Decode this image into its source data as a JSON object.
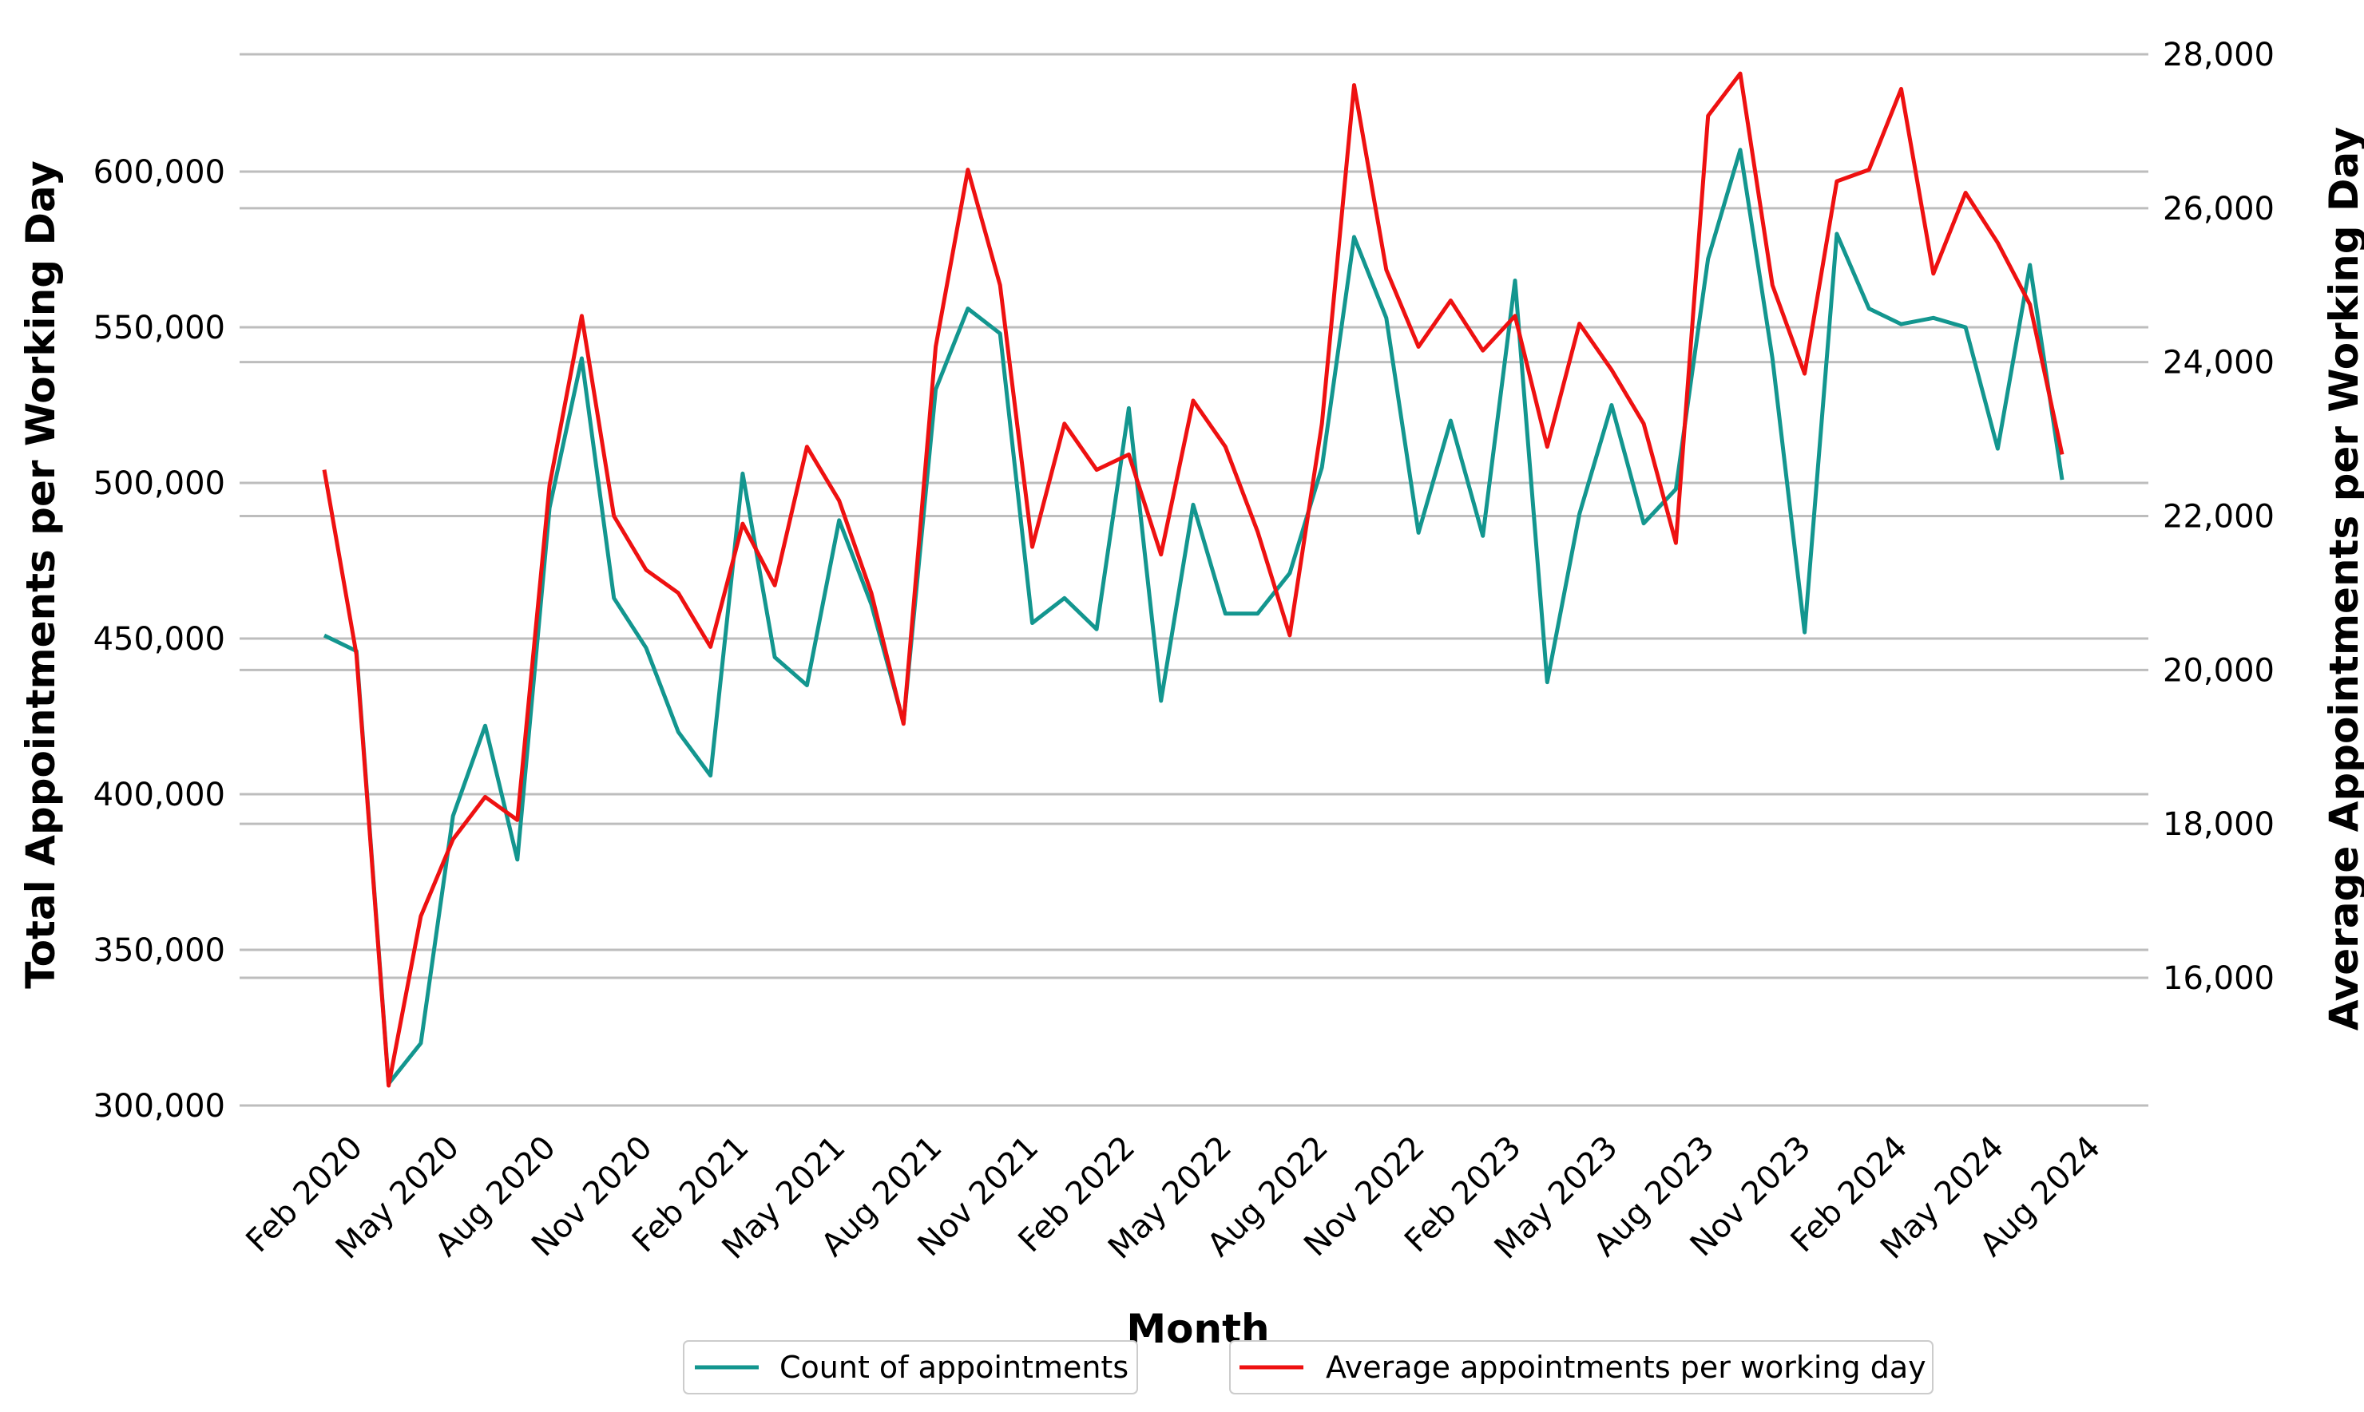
{
  "chart_data": {
    "type": "line",
    "xlabel": "Month",
    "ylabel_left": "Total Appointments per Working Day",
    "ylabel_right": "Average Appointments per Working Day",
    "ylim_left": [
      300000,
      620000
    ],
    "ylim_right": [
      14200,
      28000
    ],
    "yticks_left": [
      300000,
      350000,
      400000,
      450000,
      500000,
      550000,
      600000
    ],
    "yticks_left_labels": [
      "300,000",
      "350,000",
      "400,000",
      "450,000",
      "500,000",
      "550,000",
      "600,000"
    ],
    "yticks_right": [
      16000,
      18000,
      20000,
      22000,
      24000,
      26000,
      28000
    ],
    "yticks_right_labels": [
      "16,000",
      "18,000",
      "20,000",
      "22,000",
      "24,000",
      "26,000",
      "28,000"
    ],
    "xtick_labels": [
      "Feb 2020",
      "May 2020",
      "Aug 2020",
      "Nov 2020",
      "Feb 2021",
      "May 2021",
      "Aug 2021",
      "Nov 2021",
      "Feb 2022",
      "May 2022",
      "Aug 2022",
      "Nov 2022",
      "Feb 2023",
      "May 2023",
      "Aug 2023",
      "Nov 2023",
      "Feb 2024",
      "May 2024",
      "Aug 2024"
    ],
    "grid": true,
    "legend_position": "bottom-center",
    "x": [
      "2020-02",
      "2020-03",
      "2020-04",
      "2020-05",
      "2020-06",
      "2020-07",
      "2020-08",
      "2020-09",
      "2020-10",
      "2020-11",
      "2020-12",
      "2021-01",
      "2021-02",
      "2021-03",
      "2021-04",
      "2021-05",
      "2021-06",
      "2021-07",
      "2021-08",
      "2021-09",
      "2021-10",
      "2021-11",
      "2021-12",
      "2022-01",
      "2022-02",
      "2022-03",
      "2022-04",
      "2022-05",
      "2022-06",
      "2022-07",
      "2022-08",
      "2022-09",
      "2022-10",
      "2022-11",
      "2022-12",
      "2023-01",
      "2023-02",
      "2023-03",
      "2023-04",
      "2023-05",
      "2023-06",
      "2023-07",
      "2023-08",
      "2023-09",
      "2023-10",
      "2023-11",
      "2023-12",
      "2024-01",
      "2024-02",
      "2024-03",
      "2024-04",
      "2024-05",
      "2024-06",
      "2024-07",
      "2024-08"
    ],
    "series": [
      {
        "name": "Count of appointments",
        "axis": "left",
        "color": "#13968f",
        "values": [
          451000,
          446000,
          307000,
          320000,
          393000,
          422000,
          379000,
          492000,
          540000,
          463000,
          447000,
          420000,
          406000,
          503000,
          444000,
          435000,
          488000,
          461000,
          423000,
          530000,
          556000,
          548000,
          455000,
          463000,
          453000,
          524000,
          430000,
          493000,
          458000,
          458000,
          471000,
          505000,
          579000,
          553000,
          484000,
          520000,
          483000,
          565000,
          436000,
          490000,
          525000,
          487000,
          498000,
          572000,
          607000,
          540000,
          452000,
          580000,
          556000,
          551000,
          553000,
          550000,
          511000,
          570000,
          501000
        ]
      },
      {
        "name": "Average appointments per working day",
        "axis": "right",
        "color": "#ee1111",
        "values": [
          22600,
          20200,
          14600,
          16800,
          17800,
          18350,
          18050,
          22400,
          24600,
          22000,
          21300,
          21000,
          20300,
          21900,
          21100,
          22900,
          22200,
          21000,
          19300,
          24200,
          26500,
          25000,
          21600,
          23200,
          22600,
          22800,
          21500,
          23500,
          22900,
          21800,
          20450,
          23200,
          27600,
          25200,
          24200,
          24800,
          24150,
          24600,
          22900,
          24500,
          23900,
          23200,
          21650,
          27200,
          27750,
          25000,
          23850,
          26350,
          26500,
          27550,
          25150,
          26200,
          25550,
          24750,
          22800
        ]
      }
    ]
  }
}
